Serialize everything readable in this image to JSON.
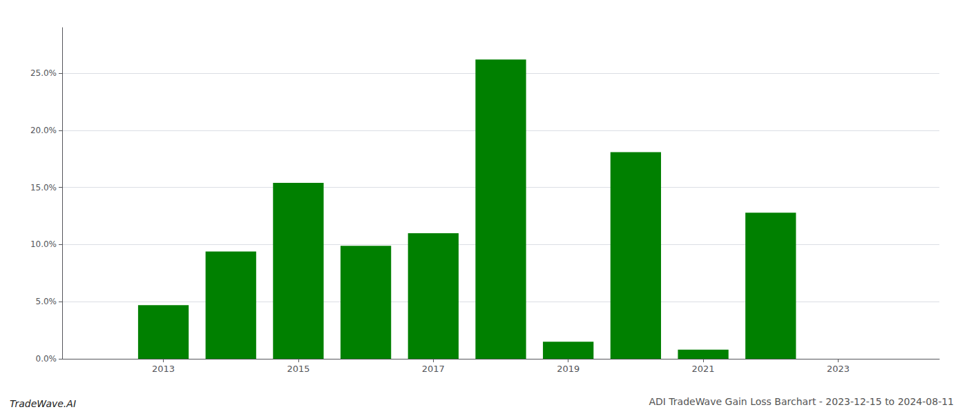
{
  "chart_data": {
    "type": "bar",
    "title": "ADI TradeWave Gain Loss Barchart - 2023-12-15 to 2024-08-11",
    "annotations": [
      "TradeWave.AI"
    ],
    "x": [
      2013,
      2014,
      2015,
      2016,
      2017,
      2018,
      2019,
      2020,
      2021,
      2022
    ],
    "values": [
      0.047,
      0.094,
      0.154,
      0.099,
      0.11,
      0.262,
      0.015,
      0.181,
      0.008,
      0.128
    ],
    "color": "#008000",
    "xlim": [
      2011.5,
      2024.5
    ],
    "xticks": [
      2013,
      2015,
      2017,
      2019,
      2021,
      2023
    ],
    "ylim": [
      0,
      0.29
    ],
    "yticks": [
      {
        "value": 0.0,
        "label": "0.0%"
      },
      {
        "value": 0.05,
        "label": "5.0%"
      },
      {
        "value": 0.1,
        "label": "10.0%"
      },
      {
        "value": 0.15,
        "label": "15.0%"
      },
      {
        "value": 0.2,
        "label": "20.0%"
      },
      {
        "value": 0.25,
        "label": "25.0%"
      }
    ],
    "grid": true
  }
}
